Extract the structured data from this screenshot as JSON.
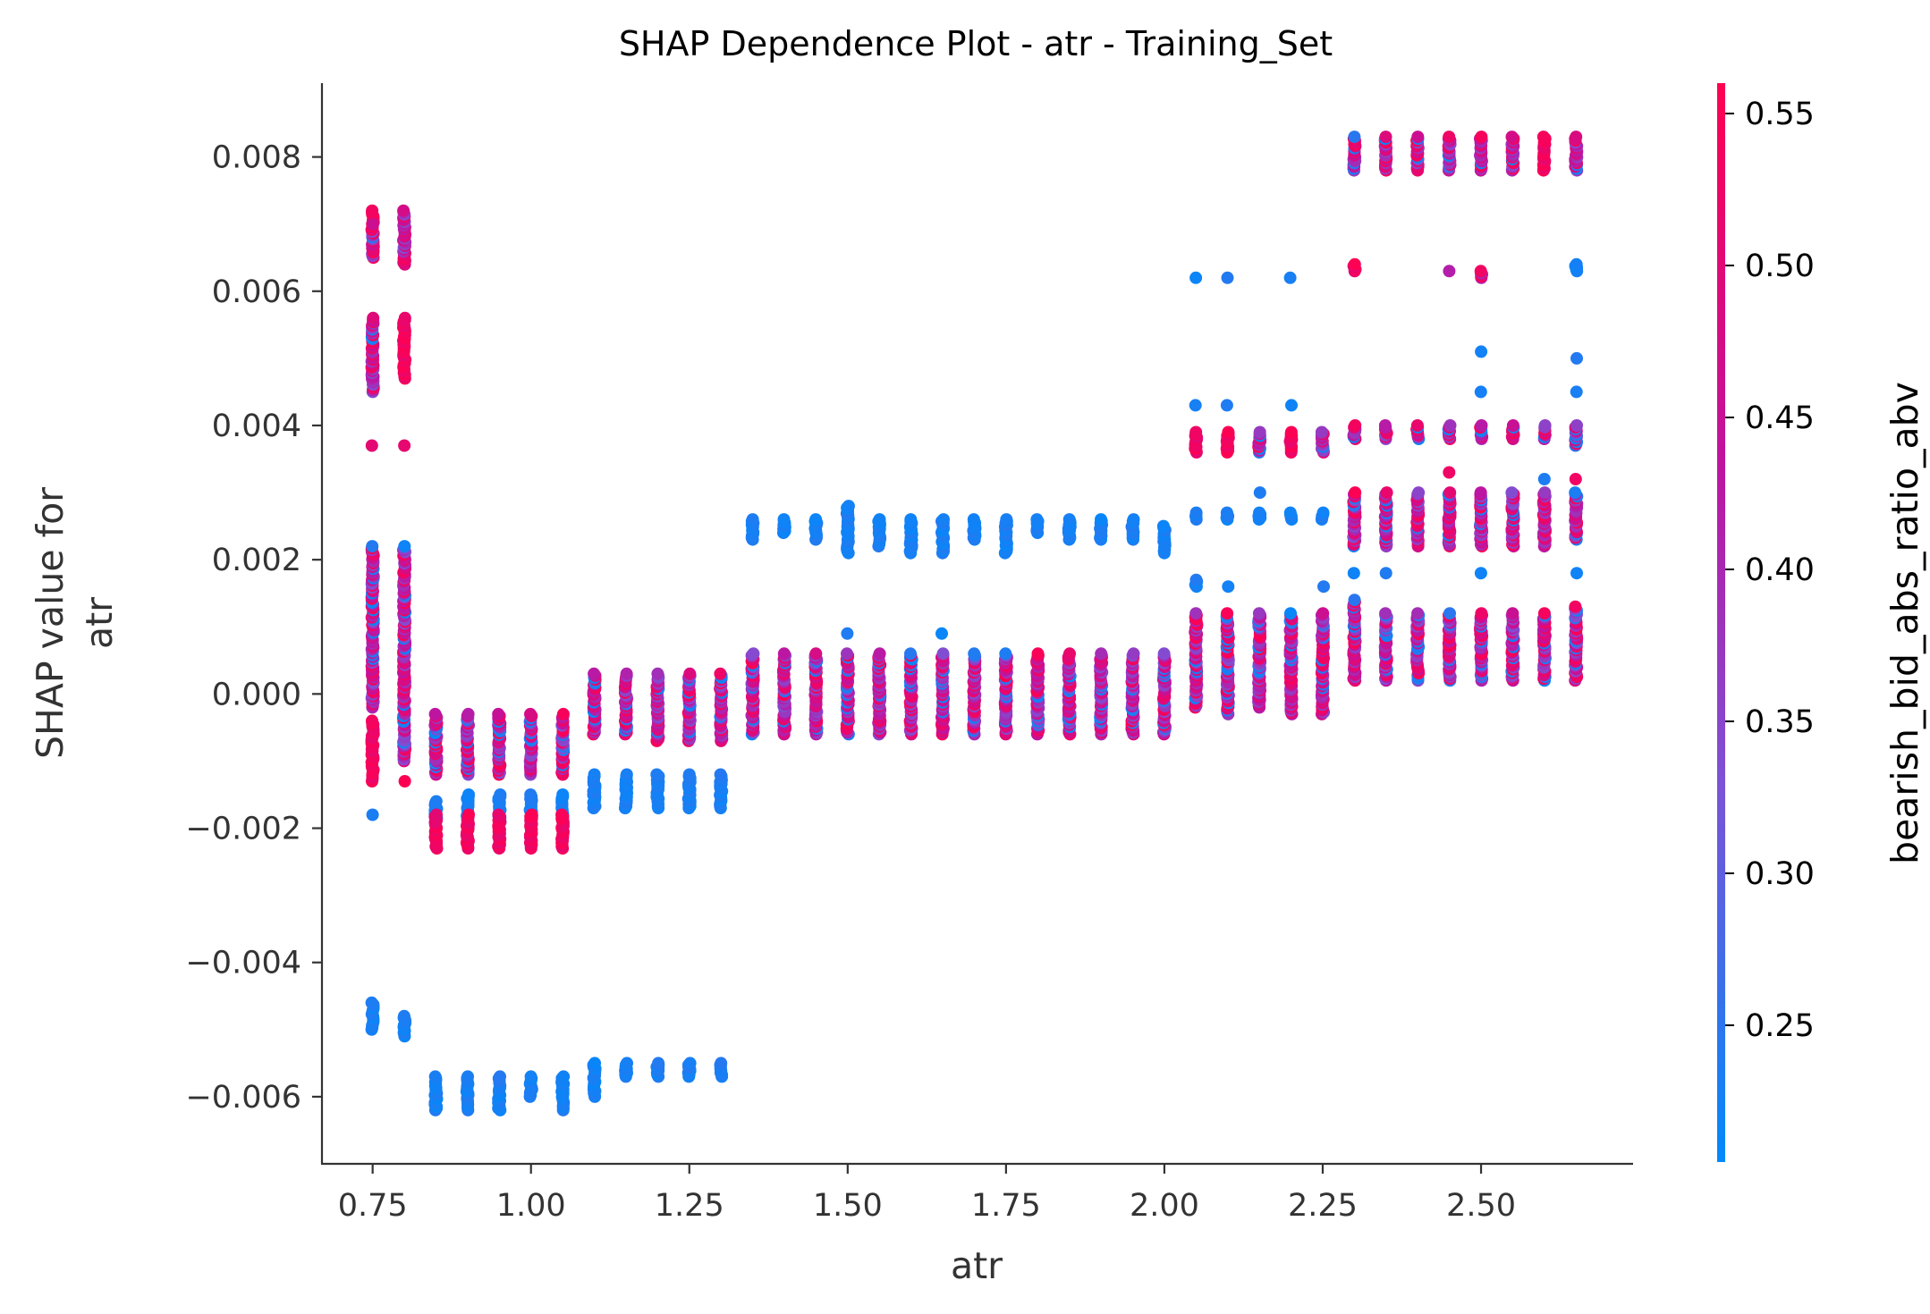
{
  "chart_data": {
    "type": "scatter",
    "title": "SHAP Dependence Plot - atr - Training_Set",
    "xlabel": "atr",
    "ylabel_lines": [
      "SHAP value for",
      "atr"
    ],
    "xlim": [
      0.67,
      2.74
    ],
    "ylim": [
      -0.007,
      0.0091
    ],
    "x_ticks": [
      0.75,
      1.0,
      1.25,
      1.5,
      1.75,
      2.0,
      2.25,
      2.5
    ],
    "x_tick_labels": [
      "0.75",
      "1.00",
      "1.25",
      "1.50",
      "1.75",
      "2.00",
      "2.25",
      "2.50"
    ],
    "y_ticks": [
      -0.006,
      -0.004,
      -0.002,
      0.0,
      0.002,
      0.004,
      0.006,
      0.008
    ],
    "y_tick_labels": [
      "−0.006",
      "−0.004",
      "−0.002",
      "0.000",
      "0.002",
      "0.004",
      "0.006",
      "0.008"
    ],
    "grid": false,
    "colorbar": {
      "label": "bearish_bid_abs_ratio_abv",
      "range": [
        0.205,
        0.56
      ],
      "ticks": [
        0.25,
        0.3,
        0.35,
        0.4,
        0.45,
        0.5,
        0.55
      ],
      "tick_labels": [
        "0.25",
        "0.30",
        "0.35",
        "0.40",
        "0.45",
        "0.50",
        "0.55"
      ],
      "colors": [
        "#008afb",
        "#7c52d6",
        "#c0139f",
        "#ff0051"
      ]
    },
    "groups": [
      {
        "x": 0.75,
        "clusters": [
          [
            0.007,
            0.0072,
            "r"
          ],
          [
            0.0065,
            0.007,
            "m"
          ],
          [
            0.0045,
            0.0056,
            "m"
          ],
          [
            0.0037,
            0.0037,
            "r"
          ],
          [
            -0.0002,
            0.0022,
            "m"
          ],
          [
            -0.0013,
            -0.0004,
            "r"
          ],
          [
            -0.0018,
            -0.0018,
            "b"
          ],
          [
            -0.005,
            -0.0046,
            "b"
          ]
        ]
      },
      {
        "x": 0.8,
        "clusters": [
          [
            0.0064,
            0.0072,
            "m"
          ],
          [
            0.0047,
            0.0056,
            "r"
          ],
          [
            0.0037,
            0.0037,
            "r"
          ],
          [
            -0.001,
            0.0022,
            "m"
          ],
          [
            -0.0013,
            -0.0013,
            "r"
          ],
          [
            -0.0051,
            -0.0048,
            "b"
          ]
        ]
      },
      {
        "x": 0.85,
        "clusters": [
          [
            -0.0012,
            -0.0003,
            "m"
          ],
          [
            -0.0019,
            -0.0016,
            "b"
          ],
          [
            -0.0023,
            -0.0018,
            "r"
          ],
          [
            -0.0062,
            -0.0057,
            "b"
          ]
        ]
      },
      {
        "x": 0.9,
        "clusters": [
          [
            -0.0012,
            -0.0003,
            "m"
          ],
          [
            -0.0019,
            -0.0015,
            "b"
          ],
          [
            -0.0023,
            -0.0018,
            "r"
          ],
          [
            -0.0062,
            -0.0057,
            "b"
          ]
        ]
      },
      {
        "x": 0.95,
        "clusters": [
          [
            -0.0012,
            -0.0003,
            "m"
          ],
          [
            -0.0019,
            -0.0015,
            "b"
          ],
          [
            -0.0023,
            -0.0018,
            "r"
          ],
          [
            -0.0062,
            -0.0057,
            "b"
          ]
        ]
      },
      {
        "x": 1.0,
        "clusters": [
          [
            -0.0012,
            -0.0003,
            "m"
          ],
          [
            -0.0019,
            -0.0015,
            "b"
          ],
          [
            -0.0023,
            -0.0018,
            "r"
          ],
          [
            -0.006,
            -0.0057,
            "b"
          ]
        ]
      },
      {
        "x": 1.05,
        "clusters": [
          [
            -0.0012,
            -0.0003,
            "m"
          ],
          [
            -0.0019,
            -0.0015,
            "b"
          ],
          [
            -0.0023,
            -0.0018,
            "r"
          ],
          [
            -0.0062,
            -0.0057,
            "b"
          ]
        ]
      },
      {
        "x": 1.1,
        "clusters": [
          [
            -0.0006,
            0.0003,
            "m"
          ],
          [
            -0.0017,
            -0.0012,
            "b"
          ],
          [
            -0.006,
            -0.0055,
            "b"
          ]
        ]
      },
      {
        "x": 1.15,
        "clusters": [
          [
            -0.0006,
            0.0003,
            "m"
          ],
          [
            -0.0017,
            -0.0012,
            "b"
          ],
          [
            -0.0057,
            -0.0055,
            "b"
          ]
        ]
      },
      {
        "x": 1.2,
        "clusters": [
          [
            -0.0007,
            0.0003,
            "m"
          ],
          [
            -0.0017,
            -0.0012,
            "b"
          ],
          [
            -0.0057,
            -0.0055,
            "b"
          ]
        ]
      },
      {
        "x": 1.25,
        "clusters": [
          [
            -0.0007,
            0.0003,
            "m"
          ],
          [
            -0.0017,
            -0.0012,
            "b"
          ],
          [
            -0.0057,
            -0.0055,
            "b"
          ]
        ]
      },
      {
        "x": 1.3,
        "clusters": [
          [
            -0.0007,
            0.0003,
            "m"
          ],
          [
            -0.0017,
            -0.0012,
            "b"
          ],
          [
            -0.0057,
            -0.0055,
            "b"
          ]
        ]
      },
      {
        "x": 1.35,
        "clusters": [
          [
            0.0023,
            0.0026,
            "b"
          ],
          [
            -0.0006,
            0.0006,
            "m"
          ]
        ]
      },
      {
        "x": 1.4,
        "clusters": [
          [
            0.0024,
            0.0026,
            "b"
          ],
          [
            -0.0006,
            0.0006,
            "m"
          ]
        ]
      },
      {
        "x": 1.45,
        "clusters": [
          [
            0.0023,
            0.0026,
            "b"
          ],
          [
            -0.0006,
            0.0006,
            "m"
          ]
        ]
      },
      {
        "x": 1.5,
        "clusters": [
          [
            0.0021,
            0.0028,
            "b"
          ],
          [
            0.0009,
            0.0009,
            "b"
          ],
          [
            -0.0006,
            0.0006,
            "m"
          ]
        ]
      },
      {
        "x": 1.55,
        "clusters": [
          [
            0.0022,
            0.0026,
            "b"
          ],
          [
            -0.0006,
            0.0006,
            "m"
          ]
        ]
      },
      {
        "x": 1.6,
        "clusters": [
          [
            0.0021,
            0.0026,
            "b"
          ],
          [
            -0.0006,
            0.0006,
            "m"
          ]
        ]
      },
      {
        "x": 1.65,
        "clusters": [
          [
            0.0021,
            0.0026,
            "b"
          ],
          [
            0.0009,
            0.0009,
            "b"
          ],
          [
            -0.0006,
            0.0006,
            "m"
          ]
        ]
      },
      {
        "x": 1.7,
        "clusters": [
          [
            0.0023,
            0.0026,
            "b"
          ],
          [
            -0.0006,
            0.0006,
            "m"
          ]
        ]
      },
      {
        "x": 1.75,
        "clusters": [
          [
            0.0021,
            0.0026,
            "b"
          ],
          [
            -0.0006,
            0.0006,
            "m"
          ]
        ]
      },
      {
        "x": 1.8,
        "clusters": [
          [
            0.0024,
            0.0026,
            "b"
          ],
          [
            -0.0006,
            0.0006,
            "m"
          ]
        ]
      },
      {
        "x": 1.85,
        "clusters": [
          [
            0.0023,
            0.0026,
            "b"
          ],
          [
            -0.0006,
            0.0006,
            "m"
          ]
        ]
      },
      {
        "x": 1.9,
        "clusters": [
          [
            0.0023,
            0.0026,
            "b"
          ],
          [
            -0.0006,
            0.0006,
            "m"
          ]
        ]
      },
      {
        "x": 1.95,
        "clusters": [
          [
            0.0023,
            0.0026,
            "b"
          ],
          [
            -0.0006,
            0.0006,
            "m"
          ]
        ]
      },
      {
        "x": 2.0,
        "clusters": [
          [
            0.0021,
            0.0025,
            "b"
          ],
          [
            -0.0006,
            0.0006,
            "m"
          ]
        ]
      },
      {
        "x": 2.05,
        "clusters": [
          [
            0.0062,
            0.0062,
            "b"
          ],
          [
            0.0043,
            0.0043,
            "b"
          ],
          [
            0.0036,
            0.0039,
            "r"
          ],
          [
            0.0026,
            0.0027,
            "b"
          ],
          [
            0.0016,
            0.0017,
            "b"
          ],
          [
            -0.0002,
            0.0012,
            "m"
          ]
        ]
      },
      {
        "x": 2.1,
        "clusters": [
          [
            0.0062,
            0.0062,
            "b"
          ],
          [
            0.0043,
            0.0043,
            "b"
          ],
          [
            0.0036,
            0.0039,
            "r"
          ],
          [
            0.0026,
            0.0027,
            "b"
          ],
          [
            0.0016,
            0.0016,
            "b"
          ],
          [
            -0.0003,
            0.0012,
            "m"
          ]
        ]
      },
      {
        "x": 2.15,
        "clusters": [
          [
            0.0036,
            0.0039,
            "m"
          ],
          [
            0.003,
            0.003,
            "b"
          ],
          [
            0.0026,
            0.0027,
            "b"
          ],
          [
            -0.0002,
            0.0012,
            "m"
          ]
        ]
      },
      {
        "x": 2.2,
        "clusters": [
          [
            0.0062,
            0.0062,
            "b"
          ],
          [
            0.0043,
            0.0043,
            "b"
          ],
          [
            0.0036,
            0.0039,
            "r"
          ],
          [
            0.0026,
            0.0027,
            "b"
          ],
          [
            -0.0003,
            0.0012,
            "m"
          ]
        ]
      },
      {
        "x": 2.25,
        "clusters": [
          [
            0.0036,
            0.0039,
            "m"
          ],
          [
            0.0026,
            0.0027,
            "b"
          ],
          [
            0.0016,
            0.0016,
            "b"
          ],
          [
            -0.0003,
            0.0012,
            "m"
          ]
        ]
      },
      {
        "x": 2.3,
        "clusters": [
          [
            0.0078,
            0.0083,
            "m"
          ],
          [
            0.0063,
            0.0064,
            "r"
          ],
          [
            0.0038,
            0.004,
            "m"
          ],
          [
            0.0022,
            0.003,
            "m"
          ],
          [
            0.0018,
            0.0018,
            "b"
          ],
          [
            0.0002,
            0.0014,
            "m"
          ]
        ]
      },
      {
        "x": 2.35,
        "clusters": [
          [
            0.0078,
            0.0083,
            "m"
          ],
          [
            0.0038,
            0.004,
            "m"
          ],
          [
            0.0022,
            0.003,
            "m"
          ],
          [
            0.0018,
            0.0018,
            "b"
          ],
          [
            0.0002,
            0.0012,
            "m"
          ]
        ]
      },
      {
        "x": 2.4,
        "clusters": [
          [
            0.0078,
            0.0083,
            "m"
          ],
          [
            0.0038,
            0.004,
            "m"
          ],
          [
            0.0022,
            0.003,
            "m"
          ],
          [
            0.0002,
            0.0012,
            "m"
          ]
        ]
      },
      {
        "x": 2.45,
        "clusters": [
          [
            0.0078,
            0.0083,
            "m"
          ],
          [
            0.0063,
            0.0063,
            "m"
          ],
          [
            0.0038,
            0.004,
            "m"
          ],
          [
            0.0033,
            0.0033,
            "r"
          ],
          [
            0.0022,
            0.003,
            "m"
          ],
          [
            0.0002,
            0.0012,
            "m"
          ]
        ]
      },
      {
        "x": 2.5,
        "clusters": [
          [
            0.0078,
            0.0083,
            "m"
          ],
          [
            0.0062,
            0.0063,
            "m"
          ],
          [
            0.0051,
            0.0051,
            "b"
          ],
          [
            0.0045,
            0.0045,
            "b"
          ],
          [
            0.0038,
            0.004,
            "m"
          ],
          [
            0.0022,
            0.003,
            "m"
          ],
          [
            0.0018,
            0.0018,
            "b"
          ],
          [
            0.0002,
            0.0012,
            "m"
          ]
        ]
      },
      {
        "x": 2.55,
        "clusters": [
          [
            0.0078,
            0.0083,
            "m"
          ],
          [
            0.0038,
            0.004,
            "m"
          ],
          [
            0.0022,
            0.003,
            "m"
          ],
          [
            0.0002,
            0.0012,
            "m"
          ]
        ]
      },
      {
        "x": 2.6,
        "clusters": [
          [
            0.0078,
            0.0083,
            "r"
          ],
          [
            0.0038,
            0.004,
            "m"
          ],
          [
            0.0032,
            0.0032,
            "b"
          ],
          [
            0.0022,
            0.003,
            "m"
          ],
          [
            0.0002,
            0.0012,
            "m"
          ]
        ]
      },
      {
        "x": 2.65,
        "clusters": [
          [
            0.0078,
            0.0083,
            "m"
          ],
          [
            0.0063,
            0.0064,
            "b"
          ],
          [
            0.005,
            0.005,
            "b"
          ],
          [
            0.0045,
            0.0045,
            "b"
          ],
          [
            0.0037,
            0.004,
            "m"
          ],
          [
            0.0032,
            0.0032,
            "r"
          ],
          [
            0.0023,
            0.003,
            "m"
          ],
          [
            0.0018,
            0.0018,
            "b"
          ],
          [
            0.0002,
            0.0013,
            "m"
          ]
        ]
      }
    ]
  }
}
